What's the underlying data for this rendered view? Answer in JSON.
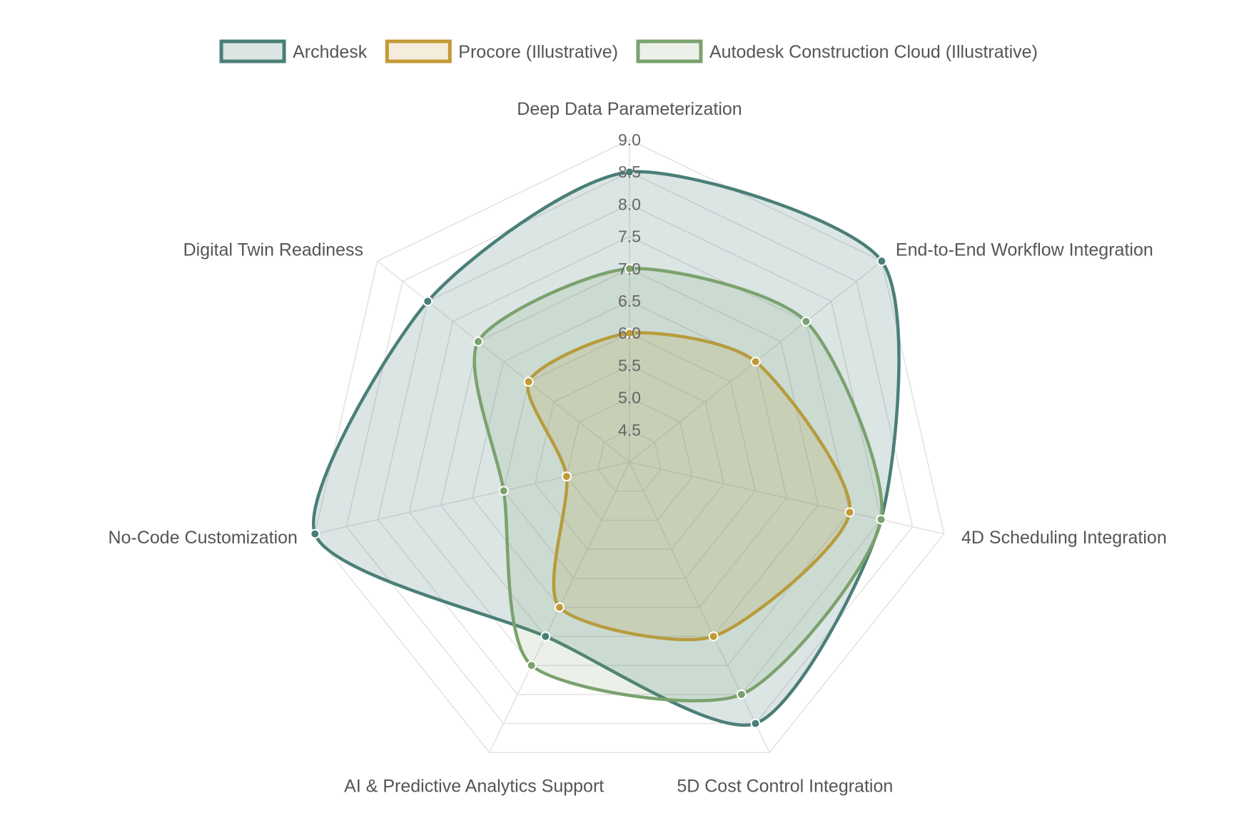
{
  "chart_data": {
    "type": "radar",
    "categories": [
      "Deep Data Parameterization",
      "End-to-End Workflow Integration",
      "4D Scheduling Integration",
      "5D Cost Control Integration",
      "AI & Predictive Analytics Support",
      "No-Code Customization",
      "Digital Twin Readiness"
    ],
    "scale": {
      "min": 4,
      "max": 9,
      "step": 0.5
    },
    "ticks": [
      "4.5",
      "5.0",
      "5.5",
      "6.0",
      "6.5",
      "7.0",
      "7.5",
      "8.0",
      "8.5",
      "9.0"
    ],
    "series": [
      {
        "name": "Archdesk",
        "values": [
          8.5,
          9.0,
          8.0,
          8.5,
          7.0,
          9.0,
          8.0
        ],
        "color": "#4a7f78",
        "fill": "rgba(74,127,120,0.20)"
      },
      {
        "name": "Procore (Illustrative)",
        "values": [
          6.0,
          6.5,
          7.5,
          7.0,
          6.5,
          5.0,
          6.0
        ],
        "color": "#c29a35",
        "fill": "rgba(194,154,53,0.18)"
      },
      {
        "name": "Autodesk Construction Cloud (Illustrative)",
        "values": [
          7.0,
          7.5,
          8.0,
          8.0,
          7.5,
          6.0,
          7.0
        ],
        "color": "#7ba26e",
        "fill": "rgba(123,162,110,0.15)"
      }
    ],
    "legend_position": "top",
    "grid": true
  }
}
